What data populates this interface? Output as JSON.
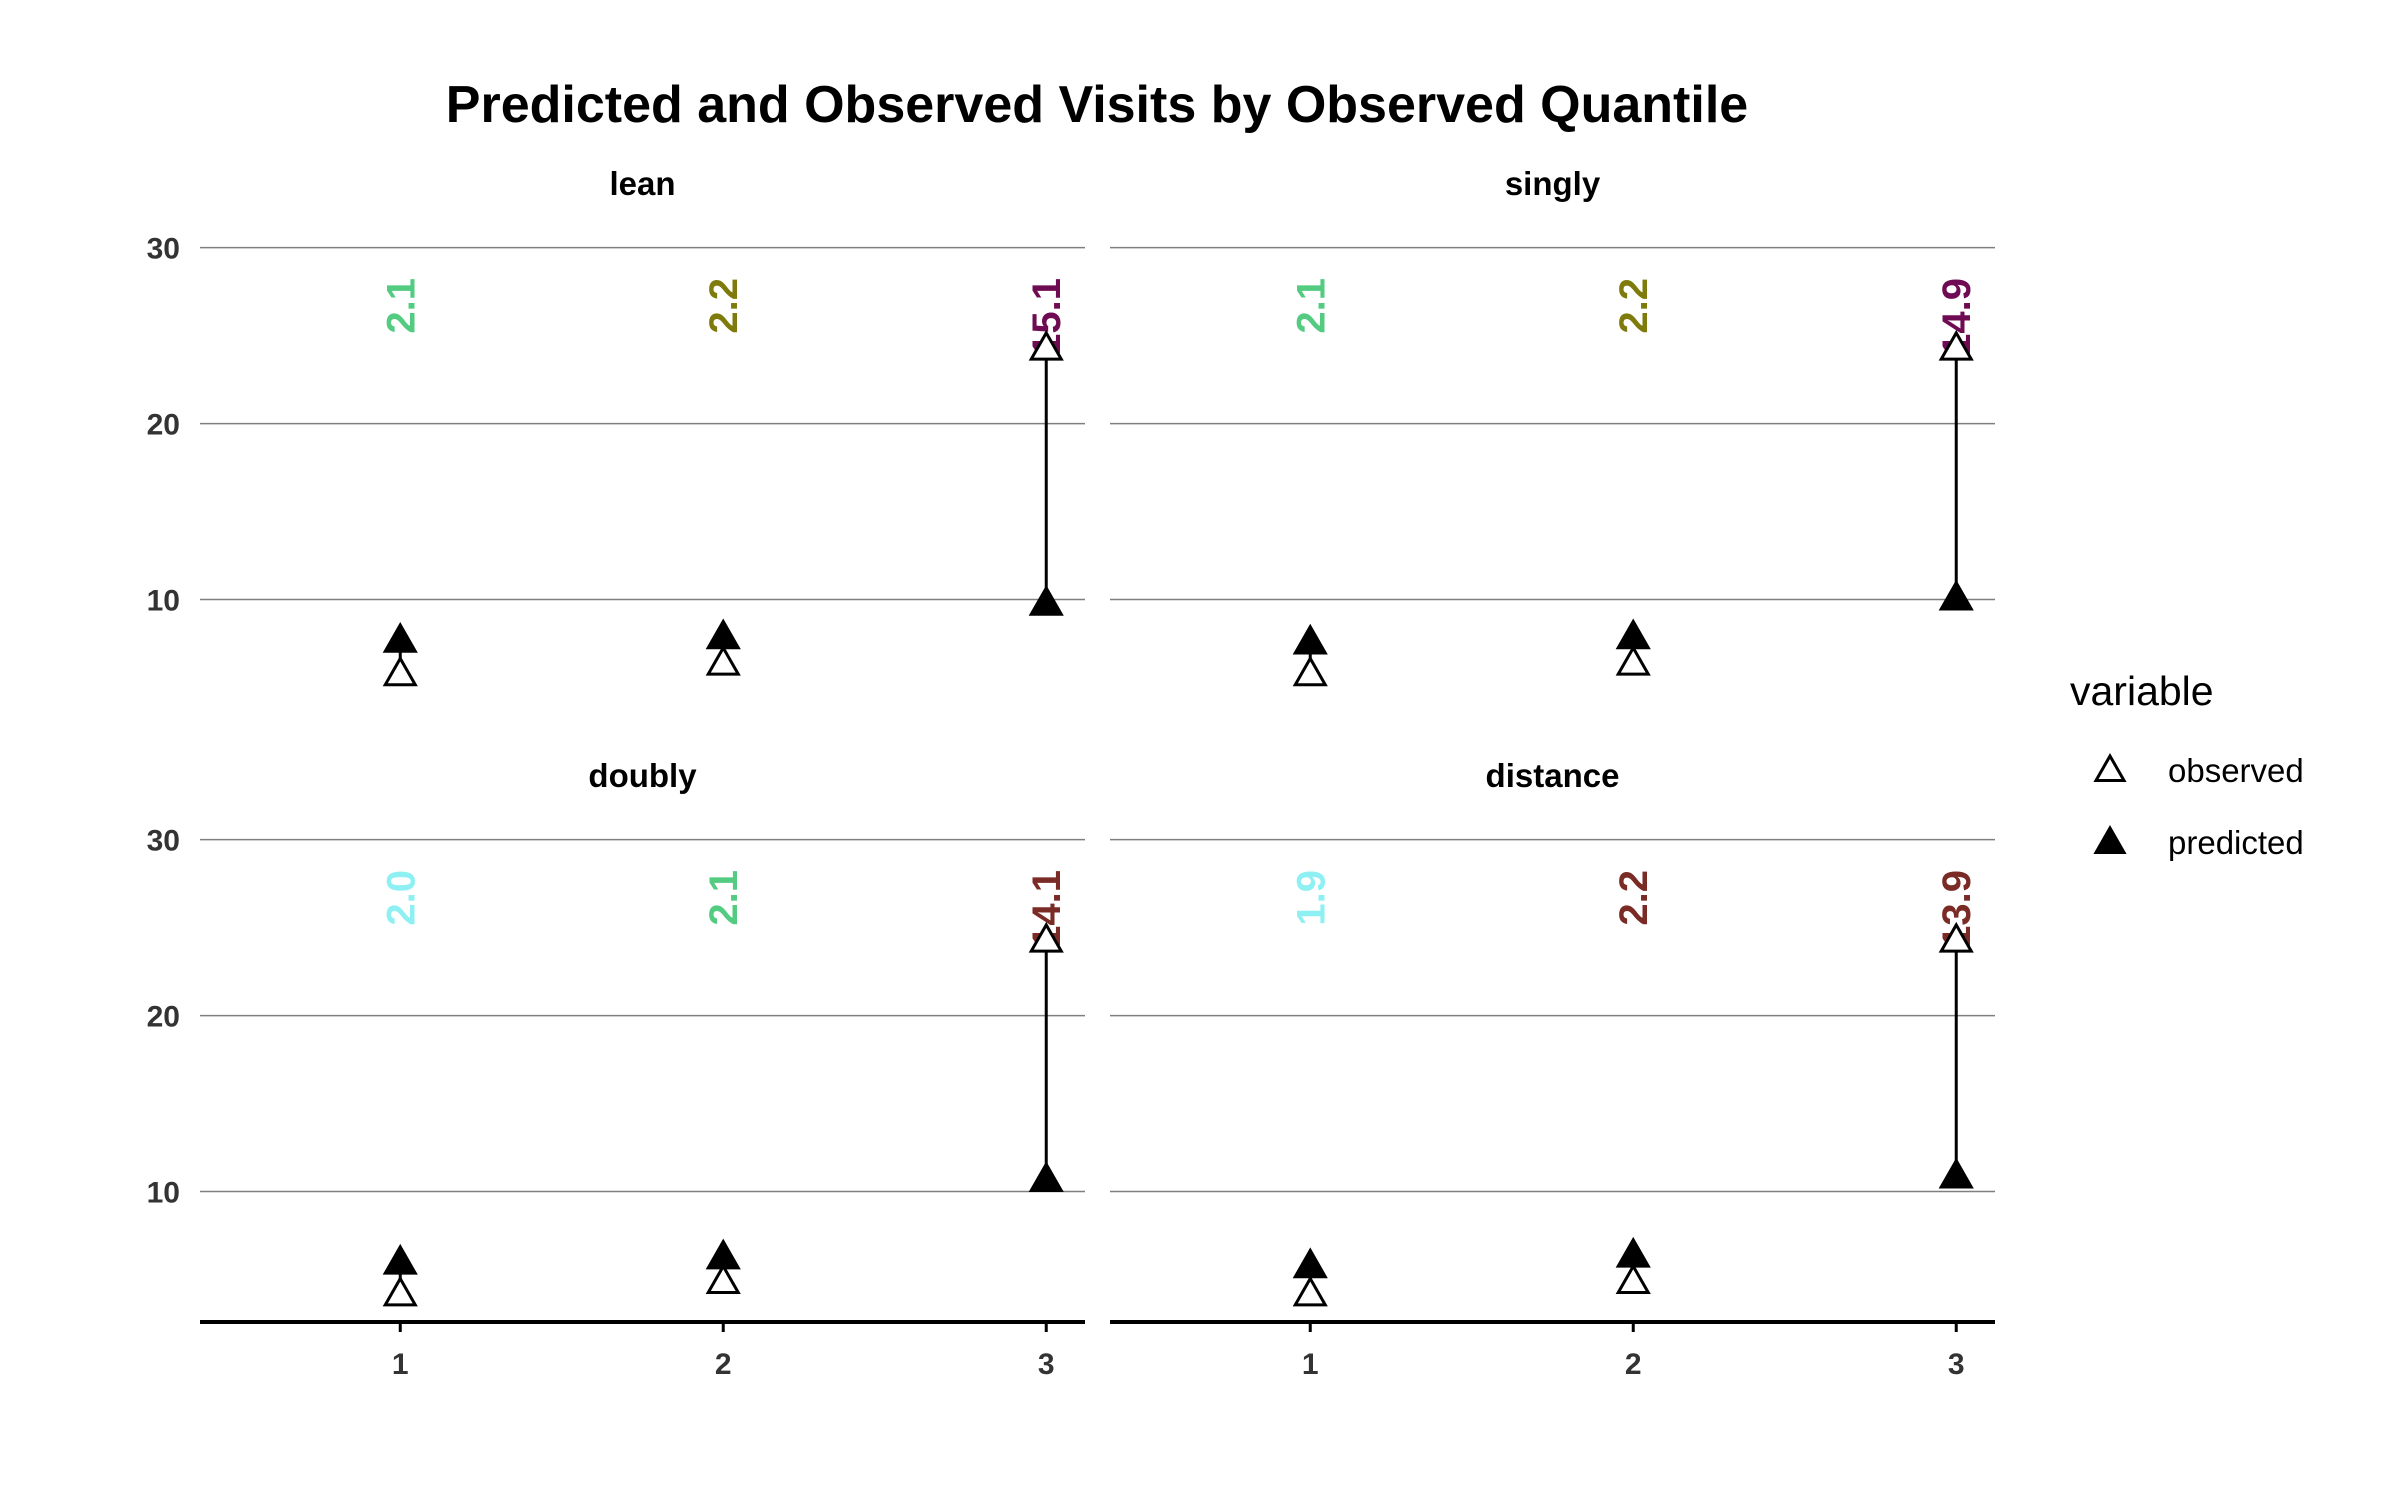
{
  "chart_data": {
    "type": "scatter",
    "title": "Predicted and Observed Visits by Observed Quantile",
    "xlabel": "",
    "ylabel": "",
    "x_ticks": [
      "1",
      "2",
      "3"
    ],
    "y_ticks": [
      10,
      20,
      30
    ],
    "ylim": [
      2.7,
      31.0
    ],
    "xlim": [
      0.38,
      3.12
    ],
    "grid": "horizontal major",
    "legend": {
      "title": "variable",
      "placement": "right",
      "entries": [
        {
          "label": "observed",
          "shape": "open-triangle"
        },
        {
          "label": "predicted",
          "shape": "filled-triangle"
        }
      ]
    },
    "panels": [
      {
        "name": "lean",
        "observed": [
          {
            "x": 1,
            "y": 5.8
          },
          {
            "x": 2,
            "y": 6.4
          },
          {
            "x": 3,
            "y": 24.3
          }
        ],
        "predicted": [
          {
            "x": 1,
            "y": 7.7
          },
          {
            "x": 2,
            "y": 7.9
          },
          {
            "x": 3,
            "y": 9.8
          }
        ],
        "labels": [
          {
            "x": 1,
            "text": "2.1",
            "color": "#53cc82"
          },
          {
            "x": 2,
            "text": "2.2",
            "color": "#7e7b0c"
          },
          {
            "x": 3,
            "text": "15.1",
            "color": "#6f0b52"
          }
        ]
      },
      {
        "name": "singly",
        "observed": [
          {
            "x": 1,
            "y": 5.8
          },
          {
            "x": 2,
            "y": 6.4
          },
          {
            "x": 3,
            "y": 24.3
          }
        ],
        "predicted": [
          {
            "x": 1,
            "y": 7.6
          },
          {
            "x": 2,
            "y": 7.9
          },
          {
            "x": 3,
            "y": 10.1
          }
        ],
        "labels": [
          {
            "x": 1,
            "text": "2.1",
            "color": "#53cc82"
          },
          {
            "x": 2,
            "text": "2.2",
            "color": "#7e7b0c"
          },
          {
            "x": 3,
            "text": "14.9",
            "color": "#6f0b52"
          }
        ]
      },
      {
        "name": "doubly",
        "observed": [
          {
            "x": 1,
            "y": 4.2
          },
          {
            "x": 2,
            "y": 4.9
          },
          {
            "x": 3,
            "y": 24.3
          }
        ],
        "predicted": [
          {
            "x": 1,
            "y": 6.0
          },
          {
            "x": 2,
            "y": 6.3
          },
          {
            "x": 3,
            "y": 10.7
          }
        ],
        "labels": [
          {
            "x": 1,
            "text": "2.0",
            "color": "#8ef0f2"
          },
          {
            "x": 2,
            "text": "2.1",
            "color": "#53cc82"
          },
          {
            "x": 3,
            "text": "14.1",
            "color": "#7a2b25"
          }
        ]
      },
      {
        "name": "distance",
        "observed": [
          {
            "x": 1,
            "y": 4.2
          },
          {
            "x": 2,
            "y": 4.9
          },
          {
            "x": 3,
            "y": 24.3
          }
        ],
        "predicted": [
          {
            "x": 1,
            "y": 5.8
          },
          {
            "x": 2,
            "y": 6.4
          },
          {
            "x": 3,
            "y": 10.9
          }
        ],
        "labels": [
          {
            "x": 1,
            "text": "1.9",
            "color": "#8ef0f2"
          },
          {
            "x": 2,
            "text": "2.2",
            "color": "#7a2b25"
          },
          {
            "x": 3,
            "text": "13.9",
            "color": "#7a2b25"
          }
        ]
      }
    ]
  }
}
